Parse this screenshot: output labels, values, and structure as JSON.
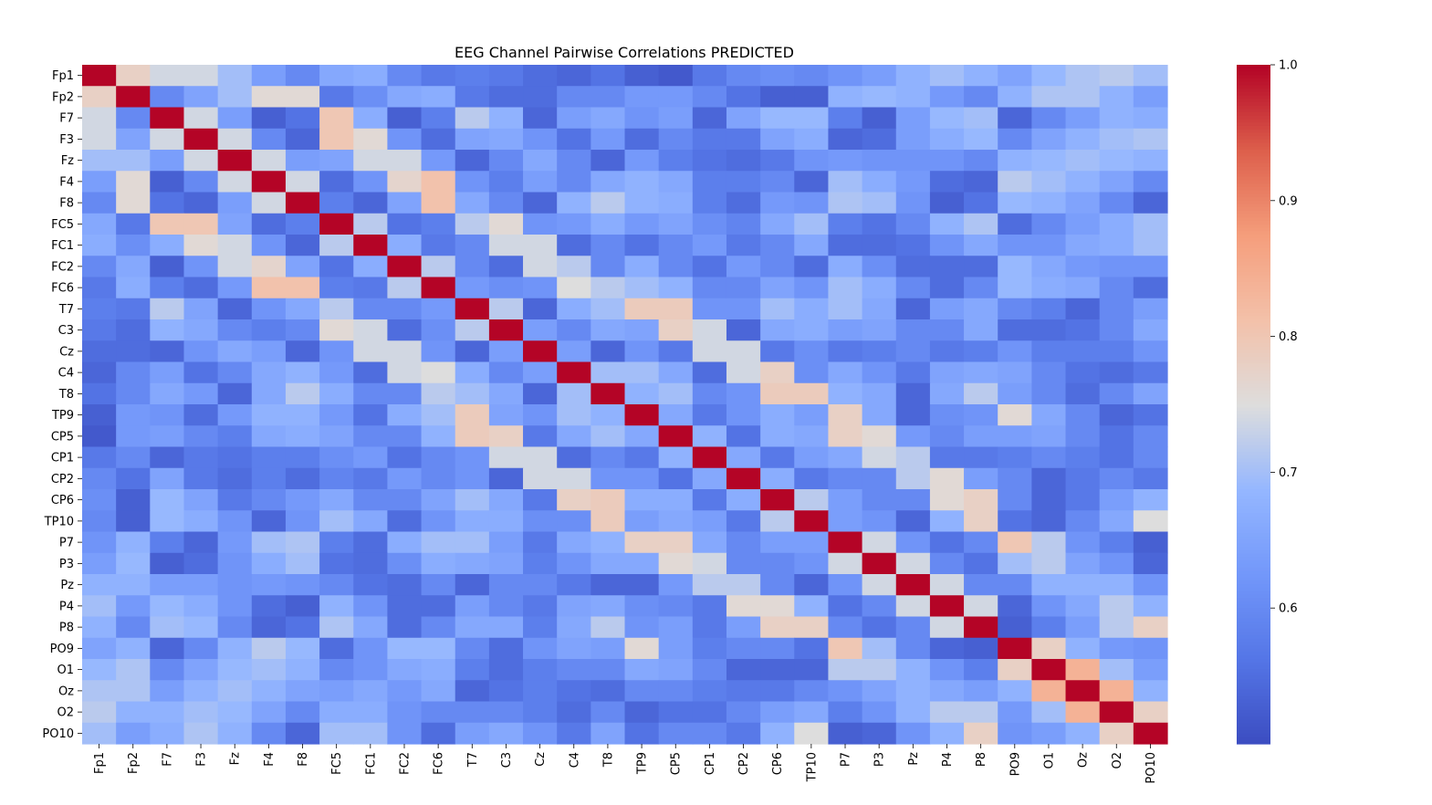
{
  "chart_data": {
    "type": "heatmap",
    "title": "EEG Channel Pairwise Correlations PREDICTED",
    "labels": [
      "Fp1",
      "Fp2",
      "F7",
      "F3",
      "Fz",
      "F4",
      "F8",
      "FC5",
      "FC1",
      "FC2",
      "FC6",
      "T7",
      "C3",
      "Cz",
      "C4",
      "T8",
      "TP9",
      "CP5",
      "CP1",
      "CP2",
      "CP6",
      "TP10",
      "P7",
      "P3",
      "Pz",
      "P4",
      "P8",
      "PO9",
      "O1",
      "Oz",
      "O2",
      "PO10"
    ],
    "colormap": "coolwarm",
    "vmin": 0.5,
    "vmax": 1.0,
    "colorbar_ticks": [
      "0.6",
      "0.7",
      "0.8",
      "0.9",
      "1.0"
    ],
    "colorbar_tick_values": [
      0.6,
      0.7,
      0.8,
      0.9,
      1.0
    ],
    "matrix": [
      [
        1.0,
        0.78,
        0.74,
        0.74,
        0.7,
        0.64,
        0.6,
        0.66,
        0.67,
        0.6,
        0.57,
        0.58,
        0.57,
        0.55,
        0.54,
        0.56,
        0.53,
        0.52,
        0.57,
        0.6,
        0.61,
        0.6,
        0.62,
        0.64,
        0.68,
        0.7,
        0.68,
        0.65,
        0.69,
        0.71,
        0.72,
        0.7
      ],
      [
        0.78,
        1.0,
        0.6,
        0.65,
        0.7,
        0.76,
        0.76,
        0.57,
        0.61,
        0.66,
        0.67,
        0.57,
        0.55,
        0.55,
        0.6,
        0.6,
        0.63,
        0.63,
        0.6,
        0.56,
        0.53,
        0.53,
        0.68,
        0.69,
        0.68,
        0.63,
        0.6,
        0.68,
        0.71,
        0.71,
        0.68,
        0.64
      ],
      [
        0.74,
        0.6,
        1.0,
        0.74,
        0.64,
        0.53,
        0.56,
        0.8,
        0.67,
        0.53,
        0.58,
        0.72,
        0.68,
        0.54,
        0.64,
        0.66,
        0.62,
        0.64,
        0.54,
        0.65,
        0.69,
        0.69,
        0.58,
        0.53,
        0.64,
        0.69,
        0.7,
        0.54,
        0.6,
        0.64,
        0.68,
        0.67
      ],
      [
        0.74,
        0.65,
        0.74,
        1.0,
        0.74,
        0.6,
        0.54,
        0.8,
        0.76,
        0.62,
        0.55,
        0.65,
        0.66,
        0.62,
        0.56,
        0.63,
        0.55,
        0.6,
        0.57,
        0.57,
        0.65,
        0.67,
        0.54,
        0.55,
        0.64,
        0.67,
        0.69,
        0.6,
        0.65,
        0.68,
        0.7,
        0.71
      ],
      [
        0.7,
        0.7,
        0.64,
        0.74,
        1.0,
        0.74,
        0.64,
        0.65,
        0.74,
        0.74,
        0.63,
        0.54,
        0.6,
        0.66,
        0.6,
        0.54,
        0.63,
        0.58,
        0.56,
        0.55,
        0.57,
        0.62,
        0.63,
        0.62,
        0.62,
        0.62,
        0.6,
        0.68,
        0.69,
        0.7,
        0.69,
        0.68
      ],
      [
        0.64,
        0.76,
        0.53,
        0.6,
        0.74,
        1.0,
        0.74,
        0.55,
        0.62,
        0.77,
        0.81,
        0.62,
        0.58,
        0.64,
        0.6,
        0.66,
        0.68,
        0.66,
        0.58,
        0.58,
        0.6,
        0.54,
        0.7,
        0.67,
        0.63,
        0.55,
        0.54,
        0.72,
        0.7,
        0.68,
        0.65,
        0.6
      ],
      [
        0.6,
        0.76,
        0.56,
        0.54,
        0.64,
        0.74,
        1.0,
        0.58,
        0.54,
        0.65,
        0.81,
        0.66,
        0.6,
        0.54,
        0.68,
        0.72,
        0.68,
        0.67,
        0.58,
        0.55,
        0.63,
        0.62,
        0.71,
        0.7,
        0.62,
        0.53,
        0.56,
        0.69,
        0.68,
        0.65,
        0.6,
        0.54
      ],
      [
        0.66,
        0.57,
        0.8,
        0.8,
        0.65,
        0.55,
        0.58,
        1.0,
        0.72,
        0.56,
        0.58,
        0.72,
        0.76,
        0.62,
        0.63,
        0.67,
        0.63,
        0.65,
        0.61,
        0.59,
        0.66,
        0.7,
        0.58,
        0.56,
        0.6,
        0.68,
        0.71,
        0.55,
        0.6,
        0.64,
        0.67,
        0.7
      ],
      [
        0.67,
        0.61,
        0.67,
        0.76,
        0.74,
        0.62,
        0.54,
        0.72,
        1.0,
        0.67,
        0.57,
        0.6,
        0.74,
        0.74,
        0.55,
        0.6,
        0.56,
        0.6,
        0.63,
        0.57,
        0.6,
        0.66,
        0.55,
        0.55,
        0.56,
        0.62,
        0.66,
        0.62,
        0.62,
        0.66,
        0.67,
        0.7
      ],
      [
        0.6,
        0.66,
        0.53,
        0.62,
        0.74,
        0.77,
        0.65,
        0.56,
        0.67,
        1.0,
        0.72,
        0.6,
        0.55,
        0.74,
        0.72,
        0.6,
        0.67,
        0.6,
        0.56,
        0.63,
        0.6,
        0.55,
        0.67,
        0.61,
        0.55,
        0.55,
        0.55,
        0.69,
        0.66,
        0.63,
        0.62,
        0.62
      ],
      [
        0.57,
        0.67,
        0.58,
        0.55,
        0.63,
        0.81,
        0.81,
        0.58,
        0.57,
        0.72,
        1.0,
        0.63,
        0.61,
        0.62,
        0.75,
        0.72,
        0.7,
        0.68,
        0.6,
        0.6,
        0.65,
        0.62,
        0.7,
        0.67,
        0.6,
        0.55,
        0.6,
        0.69,
        0.67,
        0.66,
        0.6,
        0.55
      ],
      [
        0.58,
        0.57,
        0.72,
        0.65,
        0.54,
        0.62,
        0.66,
        0.72,
        0.6,
        0.6,
        0.63,
        1.0,
        0.72,
        0.54,
        0.67,
        0.7,
        0.79,
        0.79,
        0.62,
        0.62,
        0.7,
        0.67,
        0.7,
        0.66,
        0.54,
        0.64,
        0.66,
        0.6,
        0.58,
        0.54,
        0.6,
        0.64
      ],
      [
        0.57,
        0.55,
        0.68,
        0.66,
        0.6,
        0.58,
        0.6,
        0.76,
        0.74,
        0.55,
        0.61,
        0.72,
        1.0,
        0.64,
        0.6,
        0.66,
        0.65,
        0.78,
        0.74,
        0.54,
        0.66,
        0.67,
        0.64,
        0.65,
        0.6,
        0.6,
        0.66,
        0.55,
        0.55,
        0.56,
        0.6,
        0.66
      ],
      [
        0.55,
        0.55,
        0.54,
        0.62,
        0.66,
        0.64,
        0.54,
        0.62,
        0.74,
        0.74,
        0.62,
        0.54,
        0.64,
        1.0,
        0.64,
        0.54,
        0.62,
        0.57,
        0.74,
        0.74,
        0.57,
        0.61,
        0.57,
        0.58,
        0.6,
        0.57,
        0.58,
        0.62,
        0.58,
        0.58,
        0.58,
        0.62
      ],
      [
        0.54,
        0.6,
        0.64,
        0.56,
        0.6,
        0.66,
        0.68,
        0.63,
        0.55,
        0.74,
        0.75,
        0.67,
        0.6,
        0.64,
        1.0,
        0.7,
        0.7,
        0.66,
        0.55,
        0.74,
        0.78,
        0.61,
        0.66,
        0.62,
        0.57,
        0.65,
        0.66,
        0.65,
        0.6,
        0.56,
        0.55,
        0.57
      ],
      [
        0.56,
        0.6,
        0.66,
        0.63,
        0.54,
        0.66,
        0.72,
        0.67,
        0.6,
        0.6,
        0.72,
        0.7,
        0.66,
        0.54,
        0.7,
        1.0,
        0.68,
        0.7,
        0.6,
        0.62,
        0.79,
        0.79,
        0.68,
        0.66,
        0.54,
        0.66,
        0.72,
        0.64,
        0.6,
        0.55,
        0.6,
        0.65
      ],
      [
        0.53,
        0.63,
        0.62,
        0.55,
        0.63,
        0.68,
        0.68,
        0.63,
        0.56,
        0.67,
        0.7,
        0.79,
        0.65,
        0.62,
        0.7,
        0.68,
        1.0,
        0.66,
        0.57,
        0.62,
        0.67,
        0.64,
        0.78,
        0.66,
        0.54,
        0.61,
        0.62,
        0.76,
        0.66,
        0.6,
        0.54,
        0.56
      ],
      [
        0.52,
        0.63,
        0.64,
        0.6,
        0.58,
        0.66,
        0.67,
        0.65,
        0.6,
        0.6,
        0.68,
        0.79,
        0.78,
        0.57,
        0.66,
        0.7,
        0.66,
        1.0,
        0.68,
        0.56,
        0.67,
        0.66,
        0.78,
        0.76,
        0.63,
        0.6,
        0.64,
        0.64,
        0.65,
        0.6,
        0.56,
        0.6
      ],
      [
        0.57,
        0.6,
        0.54,
        0.57,
        0.56,
        0.58,
        0.58,
        0.61,
        0.63,
        0.56,
        0.6,
        0.62,
        0.74,
        0.74,
        0.55,
        0.6,
        0.57,
        0.68,
        1.0,
        0.66,
        0.57,
        0.64,
        0.66,
        0.74,
        0.72,
        0.57,
        0.57,
        0.58,
        0.6,
        0.58,
        0.56,
        0.6
      ],
      [
        0.6,
        0.56,
        0.65,
        0.57,
        0.55,
        0.58,
        0.55,
        0.59,
        0.57,
        0.63,
        0.6,
        0.62,
        0.54,
        0.74,
        0.74,
        0.62,
        0.62,
        0.56,
        0.66,
        1.0,
        0.67,
        0.57,
        0.6,
        0.6,
        0.72,
        0.76,
        0.64,
        0.6,
        0.54,
        0.57,
        0.6,
        0.57
      ],
      [
        0.61,
        0.53,
        0.69,
        0.65,
        0.57,
        0.6,
        0.63,
        0.66,
        0.6,
        0.6,
        0.65,
        0.7,
        0.66,
        0.57,
        0.78,
        0.79,
        0.67,
        0.67,
        0.57,
        0.67,
        1.0,
        0.72,
        0.64,
        0.6,
        0.6,
        0.76,
        0.78,
        0.6,
        0.54,
        0.57,
        0.64,
        0.68
      ],
      [
        0.6,
        0.53,
        0.69,
        0.67,
        0.62,
        0.54,
        0.62,
        0.7,
        0.66,
        0.55,
        0.62,
        0.67,
        0.67,
        0.61,
        0.61,
        0.79,
        0.64,
        0.66,
        0.64,
        0.57,
        0.72,
        1.0,
        0.64,
        0.62,
        0.54,
        0.68,
        0.78,
        0.56,
        0.54,
        0.6,
        0.66,
        0.75
      ],
      [
        0.62,
        0.68,
        0.58,
        0.54,
        0.63,
        0.7,
        0.71,
        0.58,
        0.55,
        0.67,
        0.7,
        0.7,
        0.64,
        0.57,
        0.66,
        0.68,
        0.78,
        0.78,
        0.66,
        0.6,
        0.64,
        0.64,
        1.0,
        0.74,
        0.62,
        0.56,
        0.6,
        0.8,
        0.72,
        0.62,
        0.58,
        0.53
      ],
      [
        0.64,
        0.69,
        0.53,
        0.55,
        0.62,
        0.67,
        0.7,
        0.56,
        0.55,
        0.61,
        0.67,
        0.66,
        0.65,
        0.58,
        0.62,
        0.66,
        0.66,
        0.76,
        0.74,
        0.6,
        0.6,
        0.62,
        0.74,
        1.0,
        0.74,
        0.6,
        0.56,
        0.7,
        0.72,
        0.65,
        0.62,
        0.54
      ],
      [
        0.68,
        0.68,
        0.64,
        0.64,
        0.62,
        0.63,
        0.62,
        0.6,
        0.56,
        0.55,
        0.6,
        0.54,
        0.6,
        0.6,
        0.57,
        0.54,
        0.54,
        0.63,
        0.72,
        0.72,
        0.6,
        0.54,
        0.62,
        0.74,
        1.0,
        0.74,
        0.6,
        0.6,
        0.68,
        0.68,
        0.68,
        0.62
      ],
      [
        0.7,
        0.63,
        0.69,
        0.67,
        0.62,
        0.55,
        0.53,
        0.68,
        0.62,
        0.55,
        0.55,
        0.64,
        0.6,
        0.57,
        0.65,
        0.66,
        0.61,
        0.6,
        0.57,
        0.76,
        0.76,
        0.68,
        0.56,
        0.6,
        0.74,
        1.0,
        0.74,
        0.54,
        0.62,
        0.66,
        0.72,
        0.68
      ],
      [
        0.68,
        0.6,
        0.7,
        0.69,
        0.6,
        0.54,
        0.56,
        0.71,
        0.66,
        0.55,
        0.6,
        0.66,
        0.66,
        0.58,
        0.66,
        0.72,
        0.62,
        0.64,
        0.57,
        0.64,
        0.78,
        0.78,
        0.6,
        0.56,
        0.6,
        0.74,
        1.0,
        0.53,
        0.58,
        0.64,
        0.72,
        0.78
      ],
      [
        0.65,
        0.68,
        0.54,
        0.6,
        0.68,
        0.72,
        0.69,
        0.55,
        0.62,
        0.69,
        0.69,
        0.6,
        0.55,
        0.62,
        0.65,
        0.64,
        0.76,
        0.64,
        0.58,
        0.6,
        0.6,
        0.56,
        0.8,
        0.7,
        0.6,
        0.54,
        0.53,
        1.0,
        0.78,
        0.68,
        0.63,
        0.62
      ],
      [
        0.69,
        0.71,
        0.6,
        0.65,
        0.69,
        0.7,
        0.68,
        0.6,
        0.62,
        0.66,
        0.67,
        0.58,
        0.55,
        0.58,
        0.6,
        0.6,
        0.66,
        0.65,
        0.6,
        0.54,
        0.54,
        0.54,
        0.72,
        0.72,
        0.68,
        0.62,
        0.58,
        0.78,
        1.0,
        0.84,
        0.7,
        0.64
      ],
      [
        0.71,
        0.71,
        0.64,
        0.68,
        0.7,
        0.68,
        0.65,
        0.64,
        0.66,
        0.63,
        0.66,
        0.54,
        0.56,
        0.58,
        0.56,
        0.55,
        0.6,
        0.6,
        0.58,
        0.57,
        0.57,
        0.6,
        0.62,
        0.65,
        0.68,
        0.66,
        0.64,
        0.68,
        0.84,
        1.0,
        0.84,
        0.68
      ],
      [
        0.72,
        0.68,
        0.68,
        0.7,
        0.69,
        0.65,
        0.6,
        0.67,
        0.67,
        0.62,
        0.6,
        0.6,
        0.6,
        0.58,
        0.55,
        0.6,
        0.54,
        0.56,
        0.56,
        0.6,
        0.64,
        0.66,
        0.58,
        0.62,
        0.68,
        0.72,
        0.72,
        0.63,
        0.7,
        0.84,
        1.0,
        0.78
      ],
      [
        0.7,
        0.64,
        0.67,
        0.71,
        0.68,
        0.6,
        0.54,
        0.7,
        0.7,
        0.62,
        0.55,
        0.64,
        0.66,
        0.62,
        0.57,
        0.65,
        0.56,
        0.6,
        0.6,
        0.57,
        0.68,
        0.75,
        0.53,
        0.54,
        0.62,
        0.68,
        0.78,
        0.62,
        0.64,
        0.68,
        0.78,
        1.0
      ]
    ]
  }
}
